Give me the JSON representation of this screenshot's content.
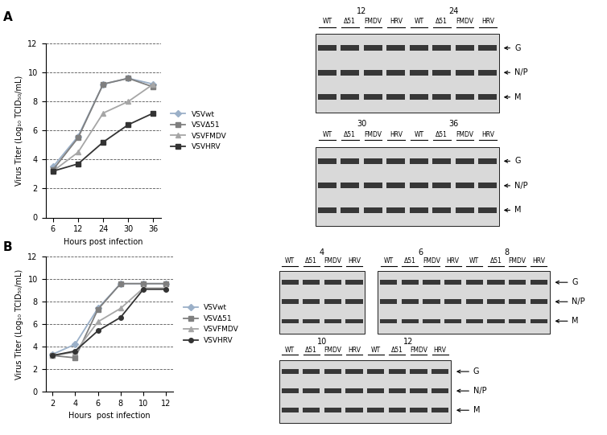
{
  "panels": [
    "A",
    "B"
  ],
  "chart_data": [
    {
      "type": "line",
      "x_label": "Hours post infection",
      "y_label": "Virus Titer (Log₁₀ TCID₅₀/mL)",
      "categories": [
        "6",
        "12",
        "24",
        "30",
        "36"
      ],
      "ylim": [
        0,
        12
      ],
      "yticks": [
        0,
        2,
        4,
        6,
        8,
        10,
        12
      ],
      "grid": true,
      "legend": "right",
      "series": [
        {
          "name": "VSVwt",
          "color": "#9bb0c8",
          "marker": "diamond",
          "values": [
            3.5,
            5.6,
            9.2,
            9.6,
            9.2
          ]
        },
        {
          "name": "VSVΔ51",
          "color": "#7f7f7f",
          "marker": "square",
          "values": [
            3.3,
            5.5,
            9.2,
            9.6,
            9.0
          ]
        },
        {
          "name": "VSVFMDV",
          "color": "#a6a6a6",
          "marker": "triangle",
          "values": [
            3.2,
            4.5,
            7.2,
            8.0,
            9.2
          ]
        },
        {
          "name": "VSVHRV",
          "color": "#333333",
          "marker": "square",
          "values": [
            3.2,
            3.7,
            5.2,
            6.4,
            7.2
          ]
        }
      ]
    },
    {
      "type": "line",
      "x_label": "Hours  post infection",
      "y_label": "Virus Titer (Log₁₀ TCID₅₀/mL)",
      "categories": [
        "2",
        "4",
        "6",
        "8",
        "10",
        "12"
      ],
      "ylim": [
        0,
        12
      ],
      "yticks": [
        0,
        2,
        4,
        6,
        8,
        10,
        12
      ],
      "grid": true,
      "legend": "right",
      "series": [
        {
          "name": "VSVwt",
          "color": "#9bb0c8",
          "marker": "diamond",
          "values": [
            3.3,
            4.2,
            7.4,
            9.6,
            9.6,
            9.6
          ]
        },
        {
          "name": "VSVΔ51",
          "color": "#7f7f7f",
          "marker": "square",
          "values": [
            3.2,
            3.0,
            7.3,
            9.6,
            9.6,
            9.6
          ]
        },
        {
          "name": "VSVFMDV",
          "color": "#a6a6a6",
          "marker": "triangle",
          "values": [
            3.2,
            3.5,
            6.2,
            7.4,
            9.2,
            9.2
          ]
        },
        {
          "name": "VSVHRV",
          "color": "#333333",
          "marker": "circle",
          "values": [
            3.2,
            3.6,
            5.4,
            6.6,
            9.1,
            9.1
          ]
        }
      ]
    }
  ],
  "blots": [
    {
      "rows": [
        [
          [
            "12",
            "24"
          ]
        ],
        [
          [
            "30",
            "36"
          ]
        ]
      ]
    },
    {
      "rows": [
        [
          [
            "4"
          ],
          [
            "6",
            "8"
          ]
        ],
        [
          [
            "10",
            "12"
          ]
        ]
      ]
    }
  ],
  "lanes": [
    "WT",
    "Δ51",
    "FMDV",
    "HRV"
  ],
  "bands": [
    "G",
    "N/P",
    "M"
  ]
}
